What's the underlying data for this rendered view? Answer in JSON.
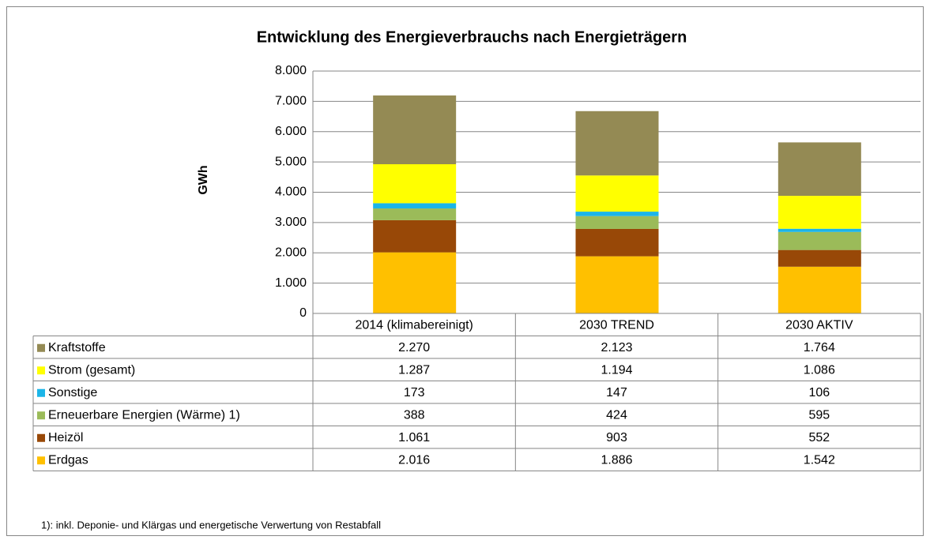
{
  "chart_data": {
    "type": "stacked_bar",
    "title": "Entwicklung des Energieverbrauchs nach Energieträgern",
    "y_label": "GWh",
    "footnote": "1): inkl. Deponie- und Klärgas und energetische Verwertung von Restabfall",
    "categories": [
      "2014 (klimabereinigt)",
      "2030 TREND",
      "2030 AKTIV"
    ],
    "series": [
      {
        "name": "Erdgas",
        "color": "#FFC000",
        "values": [
          2016,
          1886,
          1542
        ],
        "value_labels": [
          "2.016",
          "1.886",
          "1.542"
        ]
      },
      {
        "name": "Heizöl",
        "color": "#984807",
        "values": [
          1061,
          903,
          552
        ],
        "value_labels": [
          "1.061",
          "903",
          "552"
        ]
      },
      {
        "name": "Erneuerbare Energien (Wärme) 1)",
        "color": "#9BBB59",
        "values": [
          388,
          424,
          595
        ],
        "value_labels": [
          "388",
          "424",
          "595"
        ]
      },
      {
        "name": "Sonstige",
        "color": "#1CB5E8",
        "values": [
          173,
          147,
          106
        ],
        "value_labels": [
          "173",
          "147",
          "106"
        ]
      },
      {
        "name": "Strom (gesamt)",
        "color": "#FFFF00",
        "values": [
          1287,
          1194,
          1086
        ],
        "value_labels": [
          "1.287",
          "1.194",
          "1.086"
        ]
      },
      {
        "name": "Kraftstoffe",
        "color": "#948A54",
        "values": [
          2270,
          2123,
          1764
        ],
        "value_labels": [
          "2.270",
          "2.123",
          "1.764"
        ]
      }
    ],
    "ylim": [
      0,
      8000
    ],
    "yticks": [
      0,
      {
        "value": 1000,
        "label": "1.000"
      },
      {
        "value": 2000,
        "label": "2.000"
      },
      {
        "value": 3000,
        "label": "3.000"
      },
      {
        "value": 4000,
        "label": "4.000"
      },
      {
        "value": 5000,
        "label": "5.000"
      },
      {
        "value": 6000,
        "label": "6.000"
      },
      {
        "value": 7000,
        "label": "7.000"
      },
      {
        "value": 8000,
        "label": "8.000"
      }
    ],
    "grid": true
  }
}
